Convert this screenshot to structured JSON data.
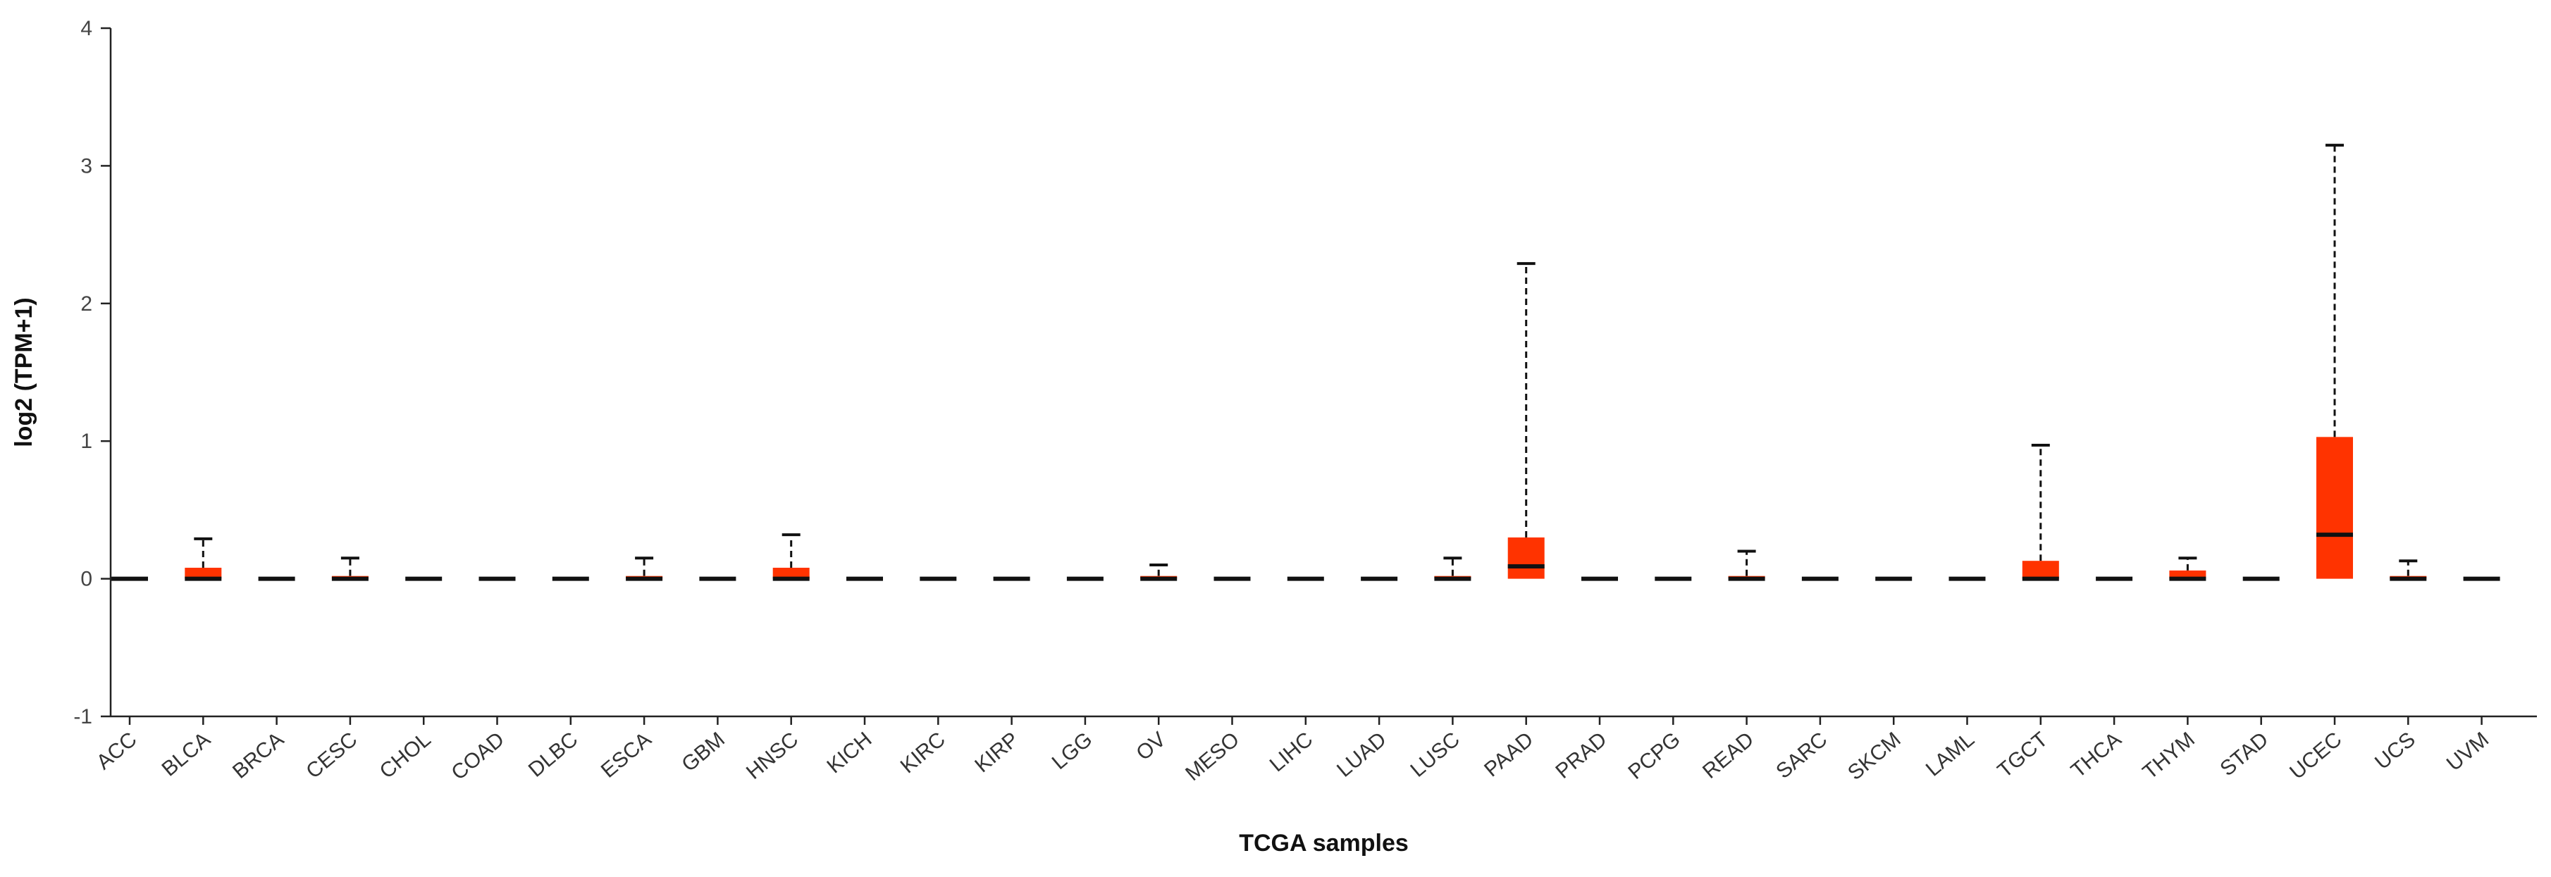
{
  "chart_data": {
    "type": "boxplot",
    "title": "",
    "xlabel": "TCGA samples",
    "ylabel": "log2 (TPM+1)",
    "ylim": [
      -1,
      4
    ],
    "yticks": [
      "-1",
      "0",
      "1",
      "2",
      "3",
      "4"
    ],
    "grid": false,
    "box_color": "#ff3300",
    "categories": [
      "ACC",
      "BLCA",
      "BRCA",
      "CESC",
      "CHOL",
      "COAD",
      "DLBC",
      "ESCA",
      "GBM",
      "HNSC",
      "KICH",
      "KIRC",
      "KIRP",
      "LGG",
      "OV",
      "MESO",
      "LIHC",
      "LUAD",
      "LUSC",
      "PAAD",
      "PRAD",
      "PCPG",
      "READ",
      "SARC",
      "SKCM",
      "LAML",
      "TGCT",
      "THCA",
      "THYM",
      "STAD",
      "UCEC",
      "UCS",
      "UVM"
    ],
    "boxes": [
      {
        "q1": 0,
        "median": 0,
        "q3": 0,
        "whisker_high": 0
      },
      {
        "q1": 0,
        "median": 0,
        "q3": 0.08,
        "whisker_high": 0.29
      },
      {
        "q1": 0,
        "median": 0,
        "q3": 0,
        "whisker_high": 0
      },
      {
        "q1": 0,
        "median": 0,
        "q3": 0.02,
        "whisker_high": 0.15
      },
      {
        "q1": 0,
        "median": 0,
        "q3": 0,
        "whisker_high": 0
      },
      {
        "q1": 0,
        "median": 0,
        "q3": 0,
        "whisker_high": 0
      },
      {
        "q1": 0,
        "median": 0,
        "q3": 0,
        "whisker_high": 0
      },
      {
        "q1": 0,
        "median": 0,
        "q3": 0.02,
        "whisker_high": 0.15
      },
      {
        "q1": 0,
        "median": 0,
        "q3": 0,
        "whisker_high": 0
      },
      {
        "q1": 0,
        "median": 0,
        "q3": 0.08,
        "whisker_high": 0.32
      },
      {
        "q1": 0,
        "median": 0,
        "q3": 0,
        "whisker_high": 0
      },
      {
        "q1": 0,
        "median": 0,
        "q3": 0,
        "whisker_high": 0
      },
      {
        "q1": 0,
        "median": 0,
        "q3": 0,
        "whisker_high": 0
      },
      {
        "q1": 0,
        "median": 0,
        "q3": 0,
        "whisker_high": 0
      },
      {
        "q1": 0,
        "median": 0,
        "q3": 0.02,
        "whisker_high": 0.1
      },
      {
        "q1": 0,
        "median": 0,
        "q3": 0,
        "whisker_high": 0
      },
      {
        "q1": 0,
        "median": 0,
        "q3": 0,
        "whisker_high": 0
      },
      {
        "q1": 0,
        "median": 0,
        "q3": 0,
        "whisker_high": 0
      },
      {
        "q1": 0,
        "median": 0,
        "q3": 0.02,
        "whisker_high": 0.15
      },
      {
        "q1": 0,
        "median": 0.09,
        "q3": 0.3,
        "whisker_high": 2.29
      },
      {
        "q1": 0,
        "median": 0,
        "q3": 0,
        "whisker_high": 0
      },
      {
        "q1": 0,
        "median": 0,
        "q3": 0,
        "whisker_high": 0
      },
      {
        "q1": 0,
        "median": 0,
        "q3": 0.02,
        "whisker_high": 0.2
      },
      {
        "q1": 0,
        "median": 0,
        "q3": 0,
        "whisker_high": 0
      },
      {
        "q1": 0,
        "median": 0,
        "q3": 0,
        "whisker_high": 0
      },
      {
        "q1": 0,
        "median": 0,
        "q3": 0,
        "whisker_high": 0
      },
      {
        "q1": 0,
        "median": 0,
        "q3": 0.13,
        "whisker_high": 0.97
      },
      {
        "q1": 0,
        "median": 0,
        "q3": 0,
        "whisker_high": 0
      },
      {
        "q1": 0,
        "median": 0,
        "q3": 0.06,
        "whisker_high": 0.15
      },
      {
        "q1": 0,
        "median": 0,
        "q3": 0,
        "whisker_high": 0
      },
      {
        "q1": 0,
        "median": 0.32,
        "q3": 1.03,
        "whisker_high": 3.15
      },
      {
        "q1": 0,
        "median": 0,
        "q3": 0.02,
        "whisker_high": 0.13
      },
      {
        "q1": 0,
        "median": 0,
        "q3": 0,
        "whisker_high": 0
      }
    ]
  }
}
